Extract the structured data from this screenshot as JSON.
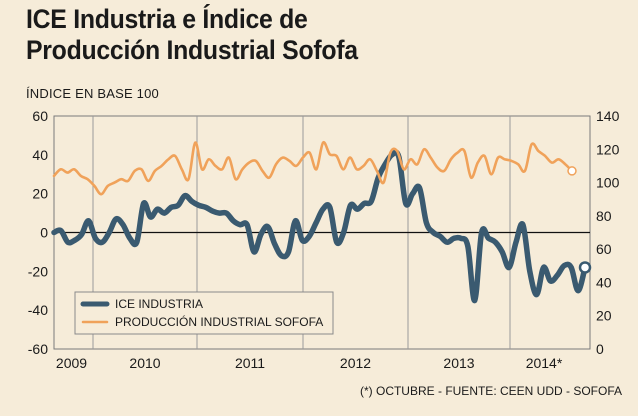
{
  "title_line1": "ICE Industria e Índice de",
  "title_line2": "Producción Industrial Sofofa",
  "subtitle": "ÍNDICE EN BASE 100",
  "source_note": "(*) OCTUBRE - FUENTE: CEEN UDD - SOFOFA",
  "colors": {
    "ice": "#3a5a70",
    "sofofa": "#f0a25a",
    "background": "#f6ecd9",
    "grid": "#9a9a9a"
  },
  "chart_data": {
    "type": "line",
    "x_labels": [
      "2009",
      "2010",
      "2011",
      "2012",
      "2013",
      "2014*"
    ],
    "left_axis": {
      "ticks": [
        60,
        40,
        20,
        0,
        -20,
        -40,
        -60
      ],
      "range": [
        -60,
        60
      ]
    },
    "right_axis": {
      "ticks": [
        140,
        120,
        100,
        80,
        60,
        40,
        20,
        0
      ],
      "range": [
        0,
        140
      ]
    },
    "grid": "vertical lines between years; horizontal line at 0",
    "legend": {
      "placement": "bottom-left"
    },
    "series": [
      {
        "name": "ICE INDUSTRIA",
        "axis": "left",
        "values": [
          0,
          1,
          -5,
          -4,
          -1,
          6,
          -3,
          -5,
          0,
          7,
          4,
          -3,
          -5,
          15,
          8,
          12,
          10,
          13,
          14,
          19,
          16,
          14,
          13,
          11,
          10,
          10,
          6,
          4,
          4,
          -10,
          -1,
          3,
          -6,
          -12,
          -10,
          6,
          -4,
          -2,
          5,
          12,
          13,
          -5,
          0,
          14,
          12,
          15,
          16,
          28,
          35,
          40,
          39,
          15,
          20,
          23,
          5,
          0,
          -2,
          -5,
          -3,
          -3,
          -7,
          -35,
          0,
          -3,
          -5,
          -10,
          -18,
          -5,
          4,
          -20,
          -32,
          -18,
          -25,
          -22,
          -17,
          -18,
          -30,
          -18
        ]
      },
      {
        "name": "PRODUCCIÓN INDUSTRIAL SOFOFA",
        "axis": "right",
        "values": [
          104,
          108,
          106,
          108,
          104,
          102,
          98,
          93,
          98,
          100,
          102,
          101,
          107,
          108,
          101,
          107,
          110,
          114,
          116,
          108,
          102,
          124,
          108,
          114,
          110,
          108,
          115,
          102,
          108,
          112,
          113,
          107,
          103,
          111,
          115,
          113,
          110,
          115,
          118,
          108,
          124,
          117,
          116,
          108,
          115,
          108,
          110,
          114,
          107,
          100,
          118,
          119,
          108,
          114,
          111,
          120,
          115,
          109,
          107,
          114,
          118,
          119,
          103,
          112,
          116,
          105,
          115,
          114,
          113,
          111,
          107,
          123,
          119,
          116,
          112,
          114,
          111,
          107
        ]
      }
    ]
  }
}
